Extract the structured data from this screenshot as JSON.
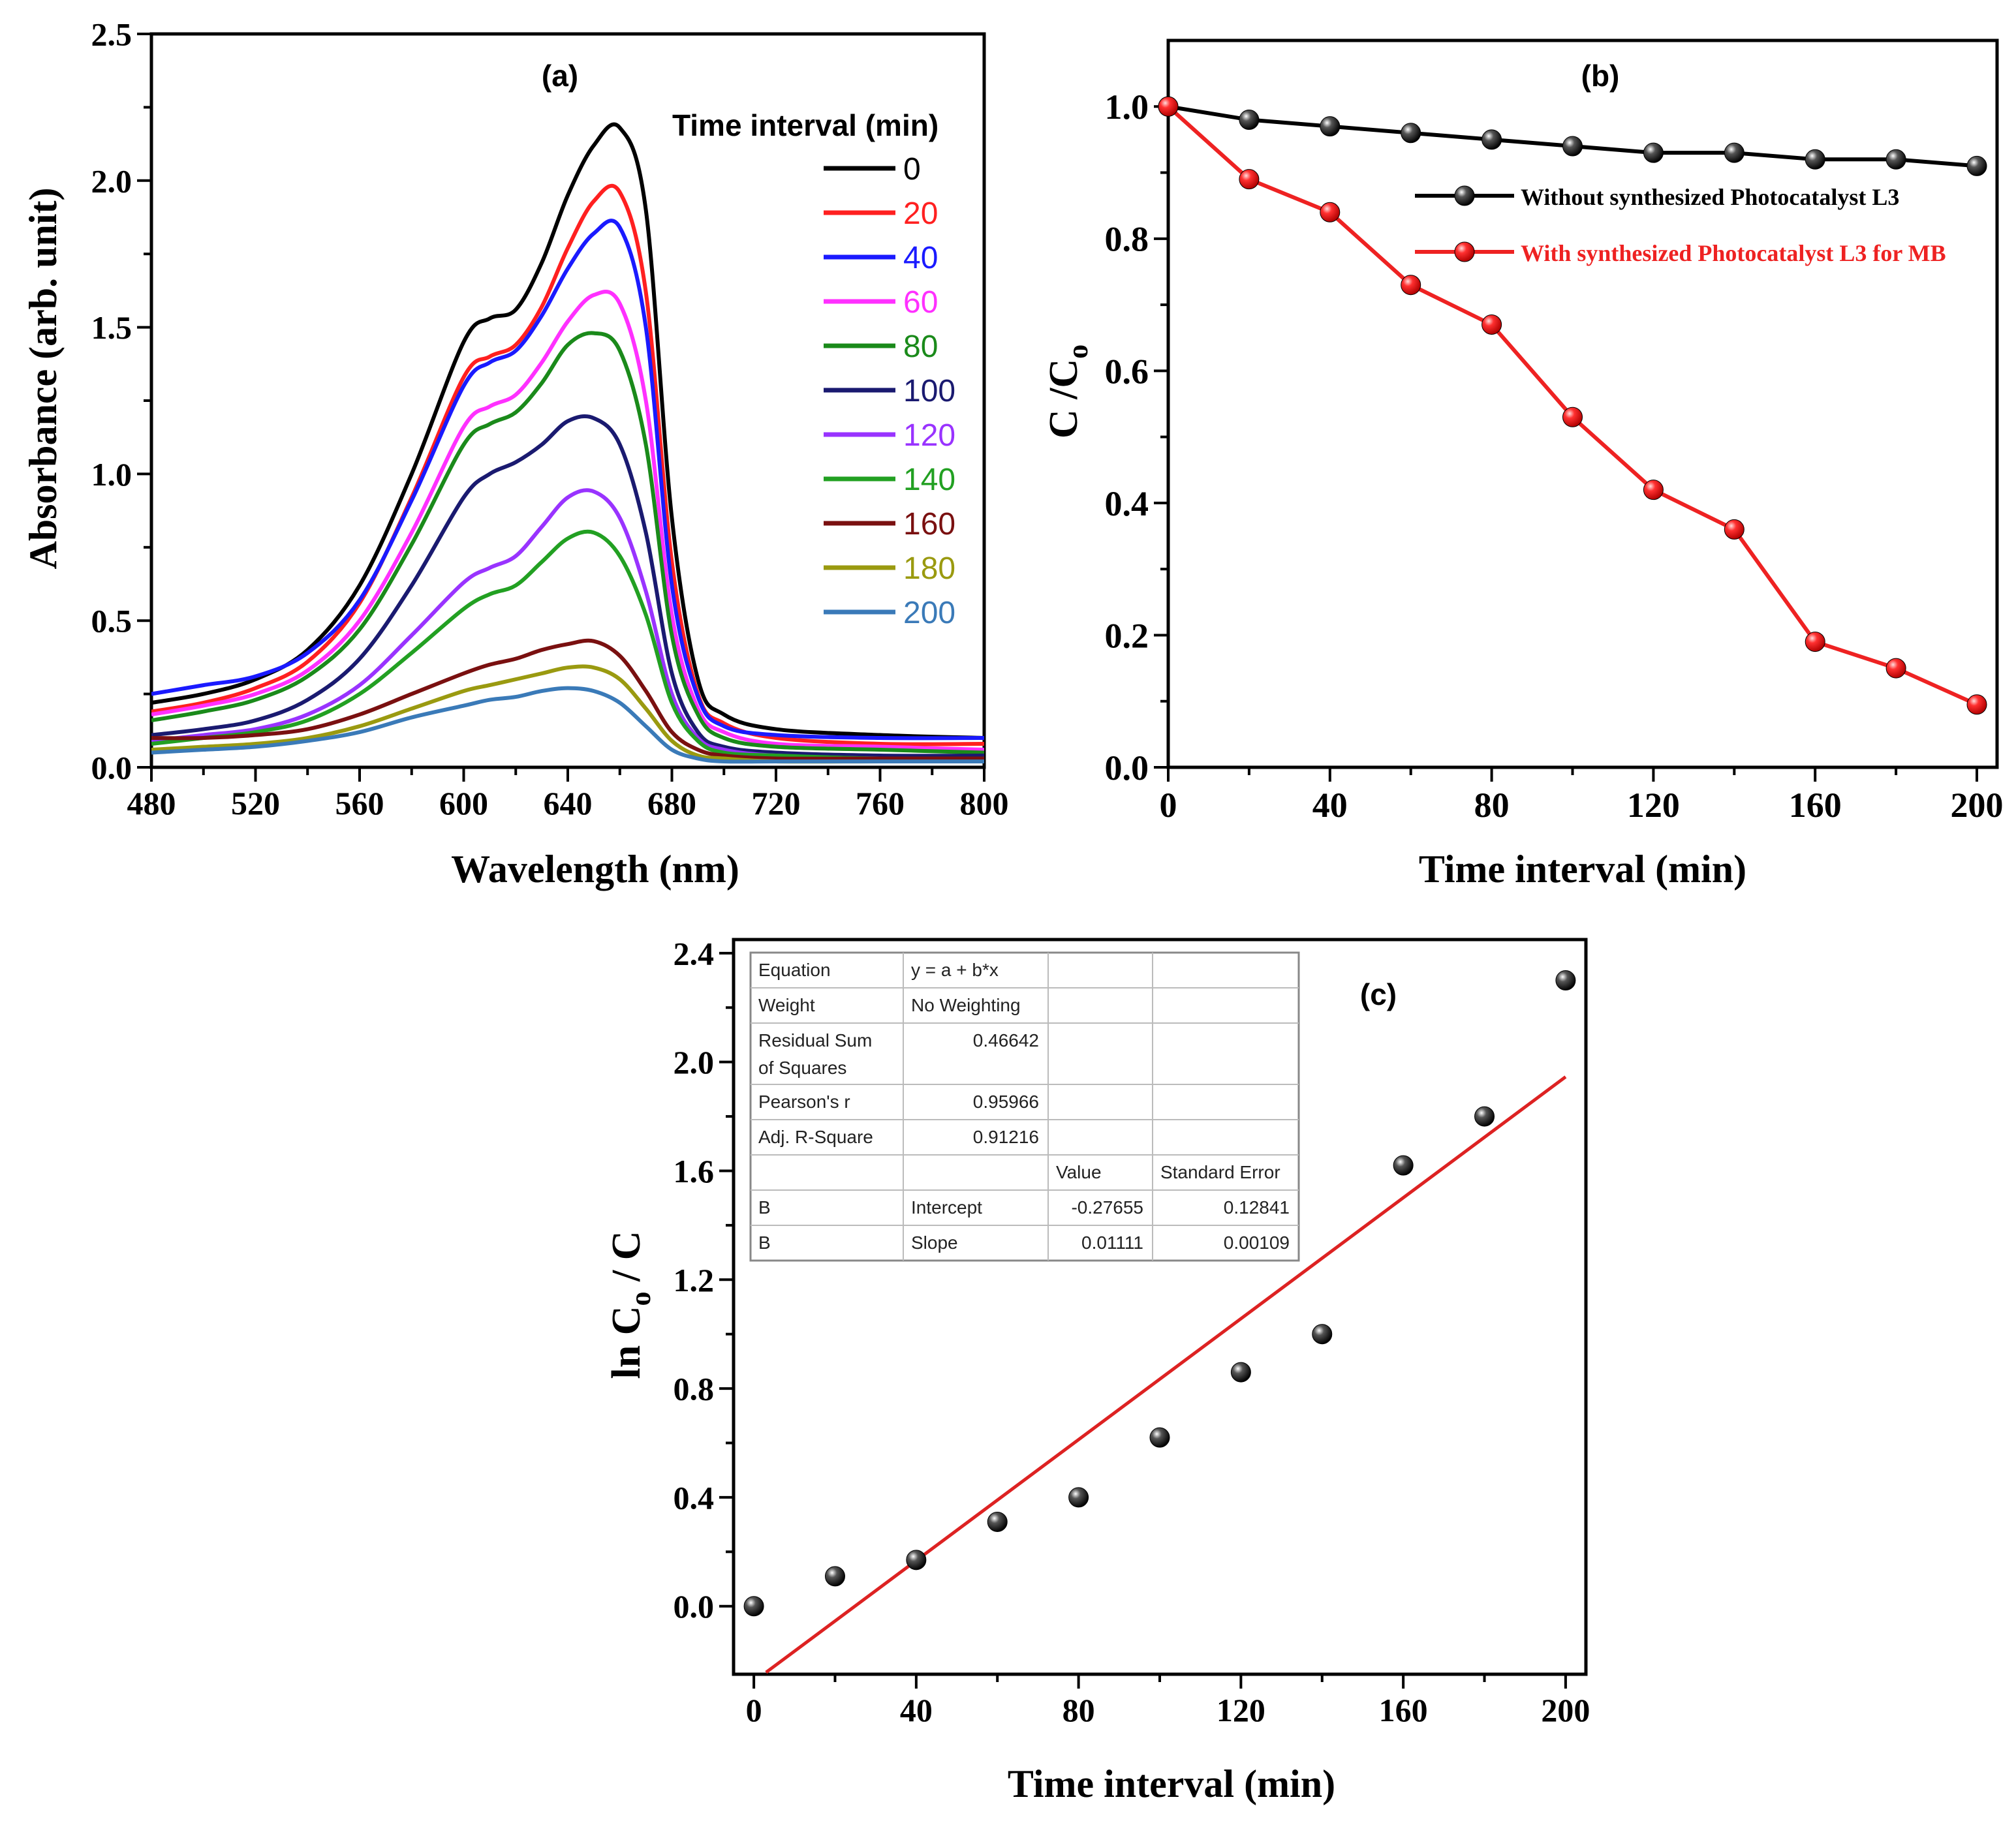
{
  "chart_data": [
    {
      "type": "line",
      "panel_label": "(a)",
      "xlabel": "Wavelength (nm)",
      "ylabel": "Absorbance (arb. unit)",
      "xlim": [
        480,
        800
      ],
      "ylim": [
        0,
        2.5
      ],
      "x_ticks": [
        "480",
        "520",
        "560",
        "600",
        "640",
        "680",
        "720",
        "760",
        "800"
      ],
      "y_ticks": [
        "0.0",
        "0.5",
        "1.0",
        "1.5",
        "2.0",
        "2.5"
      ],
      "legend_title": "Time interval (min)",
      "legend_position": "top-right",
      "x": [
        480,
        500,
        520,
        540,
        560,
        580,
        600,
        610,
        620,
        630,
        640,
        650,
        660,
        670,
        680,
        690,
        700,
        720,
        760,
        800
      ],
      "series": [
        {
          "name": "0",
          "color": "#000000",
          "values": [
            0.22,
            0.25,
            0.3,
            0.4,
            0.62,
            1.0,
            1.45,
            1.53,
            1.56,
            1.72,
            1.95,
            2.12,
            2.18,
            1.9,
            0.85,
            0.3,
            0.18,
            0.13,
            0.11,
            0.1
          ]
        },
        {
          "name": "20",
          "color": "#ff2020",
          "values": [
            0.19,
            0.22,
            0.27,
            0.36,
            0.56,
            0.92,
            1.33,
            1.4,
            1.44,
            1.57,
            1.77,
            1.93,
            1.96,
            1.62,
            0.7,
            0.25,
            0.15,
            0.1,
            0.08,
            0.08
          ]
        },
        {
          "name": "40",
          "color": "#1a1aff",
          "values": [
            0.25,
            0.28,
            0.31,
            0.39,
            0.57,
            0.91,
            1.3,
            1.38,
            1.42,
            1.54,
            1.7,
            1.82,
            1.84,
            1.5,
            0.62,
            0.24,
            0.14,
            0.11,
            0.1,
            0.1
          ]
        },
        {
          "name": "60",
          "color": "#ff30ff",
          "values": [
            0.18,
            0.21,
            0.25,
            0.33,
            0.5,
            0.8,
            1.16,
            1.23,
            1.27,
            1.38,
            1.52,
            1.61,
            1.58,
            1.25,
            0.52,
            0.2,
            0.12,
            0.08,
            0.07,
            0.06
          ]
        },
        {
          "name": "80",
          "color": "#1a8a1a",
          "values": [
            0.16,
            0.19,
            0.23,
            0.31,
            0.47,
            0.76,
            1.1,
            1.17,
            1.21,
            1.31,
            1.44,
            1.48,
            1.42,
            1.1,
            0.45,
            0.18,
            0.1,
            0.07,
            0.06,
            0.05
          ]
        },
        {
          "name": "100",
          "color": "#1a1a70",
          "values": [
            0.11,
            0.13,
            0.16,
            0.23,
            0.37,
            0.62,
            0.92,
            1.0,
            1.04,
            1.1,
            1.18,
            1.19,
            1.1,
            0.8,
            0.32,
            0.12,
            0.07,
            0.05,
            0.04,
            0.04
          ]
        },
        {
          "name": "120",
          "color": "#9933ff",
          "values": [
            0.09,
            0.11,
            0.13,
            0.18,
            0.28,
            0.45,
            0.63,
            0.68,
            0.72,
            0.82,
            0.92,
            0.94,
            0.85,
            0.6,
            0.25,
            0.1,
            0.06,
            0.04,
            0.03,
            0.03
          ]
        },
        {
          "name": "140",
          "color": "#22a022",
          "values": [
            0.08,
            0.1,
            0.12,
            0.16,
            0.25,
            0.39,
            0.54,
            0.59,
            0.62,
            0.7,
            0.78,
            0.8,
            0.72,
            0.52,
            0.22,
            0.09,
            0.05,
            0.04,
            0.03,
            0.03
          ]
        },
        {
          "name": "160",
          "color": "#7a1010",
          "values": [
            0.1,
            0.1,
            0.11,
            0.13,
            0.18,
            0.25,
            0.32,
            0.35,
            0.37,
            0.4,
            0.42,
            0.43,
            0.38,
            0.26,
            0.12,
            0.06,
            0.04,
            0.03,
            0.03,
            0.03
          ]
        },
        {
          "name": "180",
          "color": "#9a9a10",
          "values": [
            0.06,
            0.07,
            0.08,
            0.1,
            0.14,
            0.2,
            0.26,
            0.28,
            0.3,
            0.32,
            0.34,
            0.34,
            0.3,
            0.2,
            0.09,
            0.04,
            0.03,
            0.02,
            0.02,
            0.02
          ]
        },
        {
          "name": "200",
          "color": "#3a7ab8",
          "values": [
            0.05,
            0.06,
            0.07,
            0.09,
            0.12,
            0.17,
            0.21,
            0.23,
            0.24,
            0.26,
            0.27,
            0.26,
            0.22,
            0.14,
            0.06,
            0.03,
            0.02,
            0.02,
            0.02,
            0.02
          ]
        }
      ]
    },
    {
      "type": "line",
      "panel_label": "(b)",
      "xlabel": "Time interval (min)",
      "ylabel_main": "C /C",
      "ylabel_sub": "o",
      "xlim": [
        0,
        205
      ],
      "ylim": [
        0,
        1.1
      ],
      "x_ticks": [
        "0",
        "40",
        "80",
        "120",
        "160",
        "200"
      ],
      "y_ticks": [
        "0.0",
        "0.2",
        "0.4",
        "0.6",
        "0.8",
        "1.0"
      ],
      "legend_position": "top-right",
      "x": [
        0,
        20,
        40,
        60,
        80,
        100,
        120,
        140,
        160,
        180,
        200
      ],
      "series": [
        {
          "name": "Without synthesized Photocatalyst L3",
          "color": "#000000",
          "values": [
            1.0,
            0.98,
            0.97,
            0.96,
            0.95,
            0.94,
            0.93,
            0.93,
            0.92,
            0.92,
            0.91
          ]
        },
        {
          "name": "With  synthesized  Photocatalyst L3 for MB",
          "color": "#ee2222",
          "values": [
            1.0,
            0.89,
            0.84,
            0.73,
            0.67,
            0.53,
            0.42,
            0.36,
            0.19,
            0.15,
            0.095
          ]
        }
      ]
    },
    {
      "type": "scatter",
      "panel_label": "(c)",
      "xlabel": "Time interval (min)",
      "ylabel_main": "ln C",
      "ylabel_sub": "o",
      "ylabel_tail": " / C",
      "xlim": [
        -5,
        205
      ],
      "ylim": [
        -0.25,
        2.45
      ],
      "x_ticks": [
        "0",
        "40",
        "80",
        "120",
        "160",
        "200"
      ],
      "y_ticks": [
        "0.0",
        "0.4",
        "0.8",
        "1.2",
        "1.6",
        "2.0",
        "2.4"
      ],
      "x": [
        0,
        20,
        40,
        60,
        80,
        100,
        120,
        140,
        160,
        180,
        200
      ],
      "values": [
        0.0,
        0.11,
        0.17,
        0.31,
        0.4,
        0.62,
        0.86,
        1.0,
        1.62,
        1.8,
        2.3
      ],
      "fit": {
        "intercept": -0.27655,
        "slope": 0.01111,
        "x_range": [
          3,
          200
        ],
        "color": "#dd2222"
      },
      "fit_table": [
        [
          "Equation",
          "y = a + b*x",
          "",
          ""
        ],
        [
          "Weight",
          "No Weighting",
          "",
          ""
        ],
        [
          "Residual Sum\nof Squares",
          "0.46642",
          "",
          ""
        ],
        [
          "Pearson's r",
          "0.95966",
          "",
          ""
        ],
        [
          "Adj. R-Square",
          "0.91216",
          "",
          ""
        ],
        [
          "",
          "",
          "Value",
          "Standard Error"
        ],
        [
          "B",
          "Intercept",
          "-0.27655",
          "0.12841"
        ],
        [
          "B",
          "Slope",
          "0.01111",
          "0.00109"
        ]
      ]
    }
  ]
}
